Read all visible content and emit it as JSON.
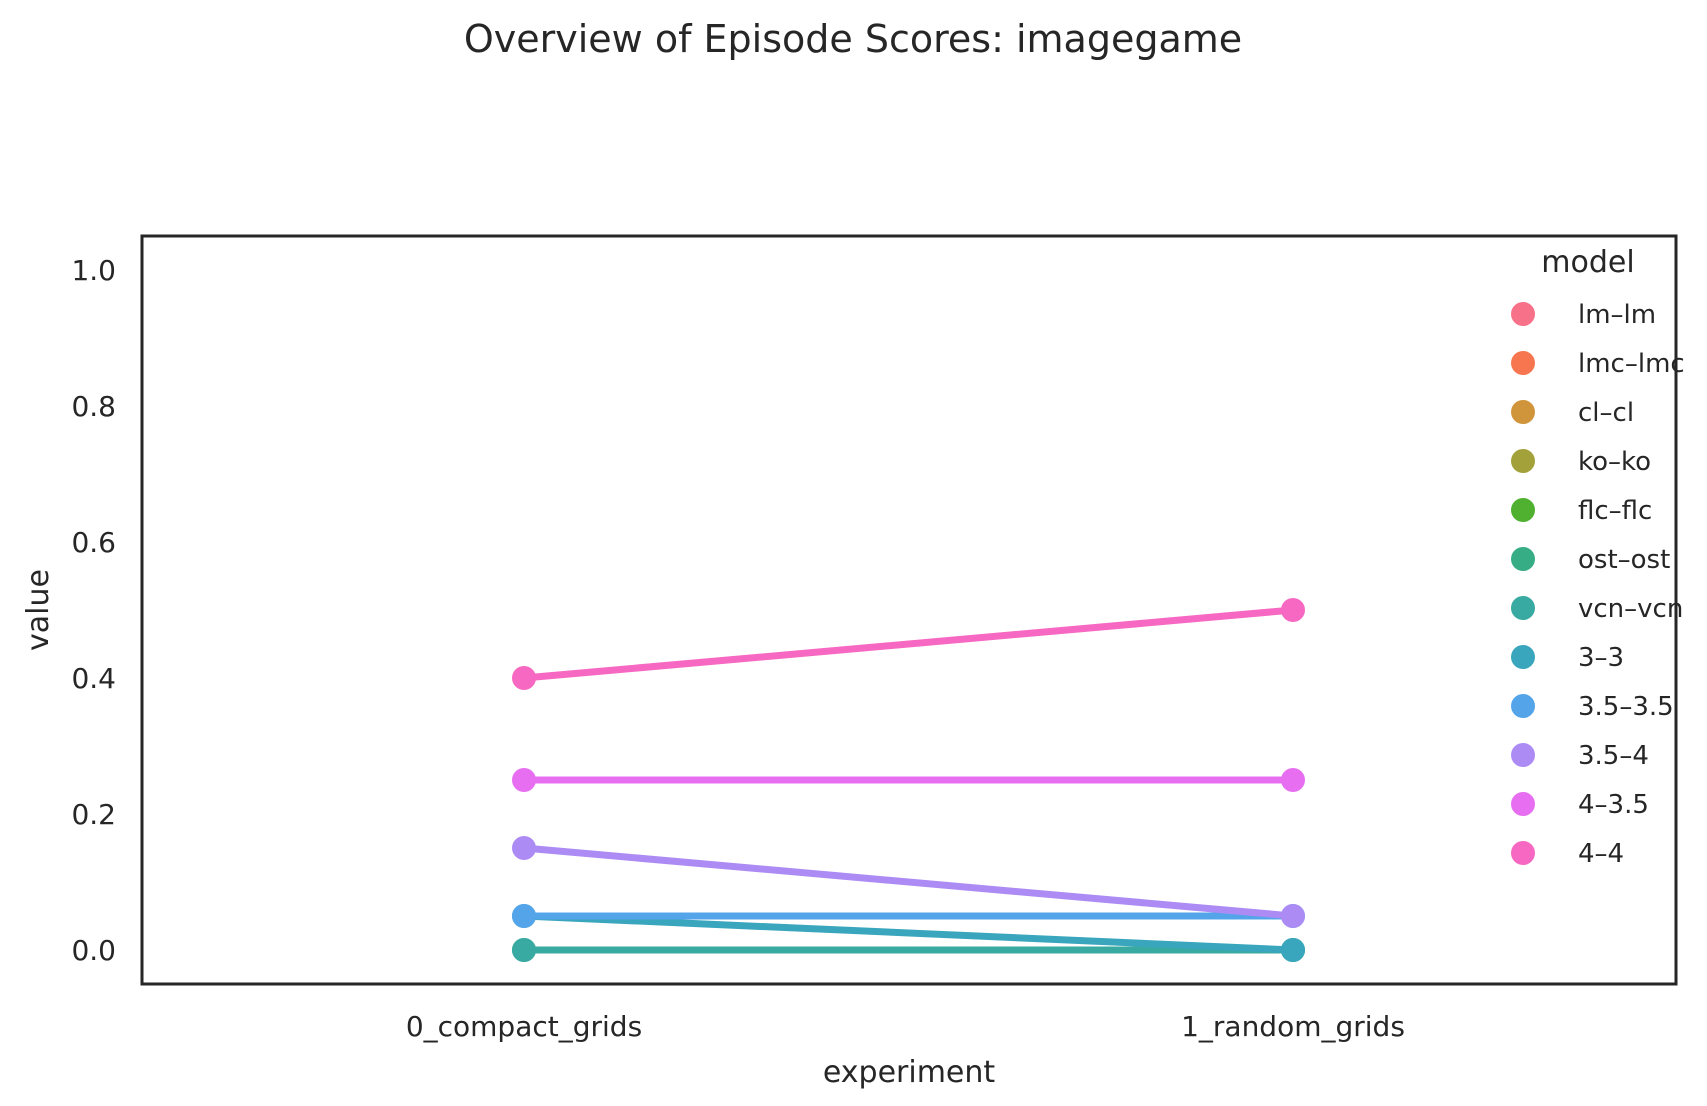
{
  "chart_data": {
    "type": "line",
    "title": "Overview of Episode Scores: imagegame",
    "xlabel": "experiment",
    "ylabel": "value",
    "categories": [
      "0_compact_grids",
      "1_random_grids"
    ],
    "ylim": [
      -0.05,
      1.05
    ],
    "yticks": [
      "0.0",
      "0.2",
      "0.4",
      "0.6",
      "0.8",
      "1.0"
    ],
    "grid": false,
    "legend": {
      "title": "model",
      "placement": "top-right",
      "items": [
        "lm–lm",
        "lmc–lmc",
        "cl–cl",
        "ko–ko",
        "flc–flc",
        "ost–ost",
        "vcn–vcn",
        "3–3",
        "3.5–3.5",
        "3.5–4",
        "4–3.5",
        "4–4"
      ],
      "colors": [
        "#f77189",
        "#f7754f",
        "#d0943a",
        "#a3a13a",
        "#50b131",
        "#36ad85",
        "#38aaa1",
        "#3aa6bd",
        "#54a4ea",
        "#ac8cf4",
        "#e76ef1",
        "#f668c2"
      ]
    },
    "series": [
      {
        "name": "ost–ost",
        "color": "#36ad85",
        "values": [
          0.0,
          0.0
        ]
      },
      {
        "name": "vcn–vcn",
        "color": "#38aaa1",
        "values": [
          0.0,
          0.0
        ]
      },
      {
        "name": "3–3",
        "color": "#3aa6bd",
        "values": [
          0.05,
          0.0
        ]
      },
      {
        "name": "3.5–3.5",
        "color": "#54a4ea",
        "values": [
          0.05,
          0.05
        ]
      },
      {
        "name": "3.5–4",
        "color": "#ac8cf4",
        "values": [
          0.15,
          0.05
        ]
      },
      {
        "name": "4–3.5",
        "color": "#e76ef1",
        "values": [
          0.25,
          0.25
        ]
      },
      {
        "name": "4–4",
        "color": "#f668c2",
        "values": [
          0.4,
          0.5
        ]
      }
    ]
  }
}
